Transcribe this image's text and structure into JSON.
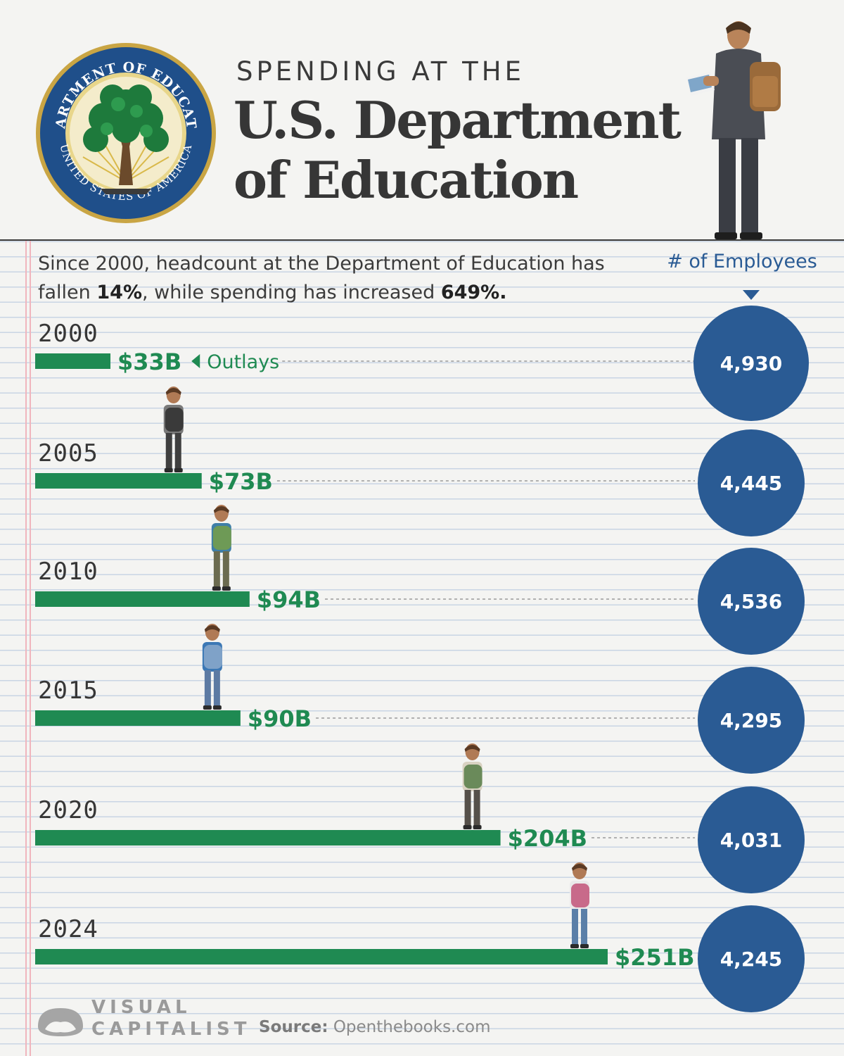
{
  "header": {
    "kicker": "SPENDING AT THE",
    "title_line1": "U.S. Department",
    "title_line2": "of Education",
    "seal_text_top": "DEPARTMENT OF EDUCATION",
    "seal_text_bottom": "UNITED STATES OF AMERICA"
  },
  "intro": {
    "part1": "Since 2000, headcount at the Department of Education has fallen ",
    "headcount_change": "14%",
    "part2": ", while spending has increased ",
    "spending_change": "649%."
  },
  "employees_header": "# of Employees",
  "chart_data": {
    "type": "bar",
    "orientation": "horizontal",
    "title": "Spending at the U.S. Department of Education",
    "categories": [
      "2000",
      "2005",
      "2010",
      "2015",
      "2020",
      "2024"
    ],
    "series": [
      {
        "name": "Outlays",
        "values": [
          33,
          73,
          94,
          90,
          204,
          251
        ],
        "labels": [
          "$33B",
          "$73B",
          "$94B",
          "$90B",
          "$204B",
          "$251B"
        ],
        "color": "#1f8a52"
      },
      {
        "name": "# of Employees",
        "values": [
          4930,
          4445,
          4536,
          4295,
          4031,
          4245
        ],
        "labels": [
          "4,930",
          "4,445",
          "4,536",
          "4,295",
          "4,031",
          "4,245"
        ],
        "color": "#2a5b94"
      }
    ],
    "annotation": "Outlays",
    "xlim": [
      0,
      251
    ],
    "grid": false
  },
  "footer": {
    "brand_line1": "VISUAL",
    "brand_line2": "CAPITALIST",
    "source_label": "Source:",
    "source_value": "Openthebooks.com"
  },
  "colors": {
    "bar": "#1f8a52",
    "circle": "#2a5b94",
    "text": "#363636",
    "paper_lines": "#c9d5e4",
    "margin_line": "#f0b5bd"
  }
}
